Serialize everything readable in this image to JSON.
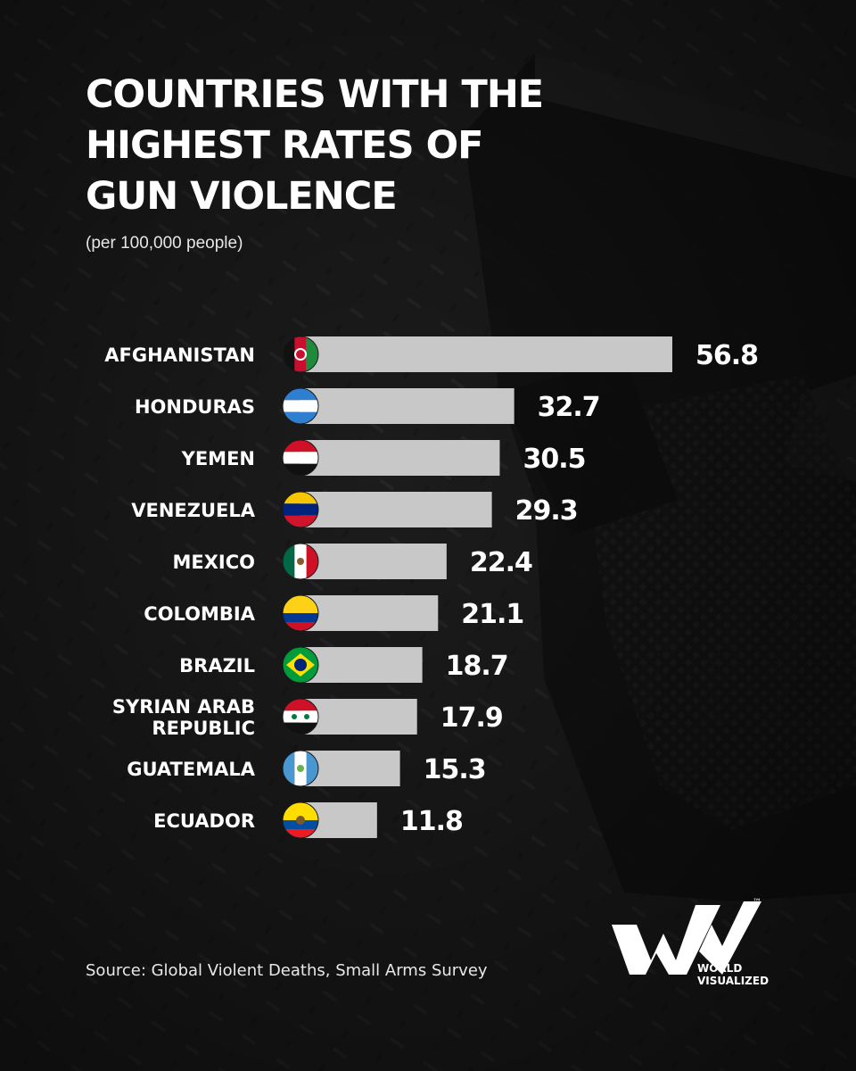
{
  "title": "COUNTRIES WITH THE\nHIGHEST RATES OF\nGUN VIOLENCE",
  "subtitle": "(per 100,000 people)",
  "source": "Source: Global Violent Deaths, Small Arms Survey",
  "brand": {
    "line1": "WORLD",
    "line2": "VISUALIZED",
    "mark": "™"
  },
  "colors": {
    "background": "#1e1e1e",
    "bar": "#c8c8c8",
    "text": "#ffffff"
  },
  "chart_data": {
    "type": "bar",
    "orientation": "horizontal",
    "title": "COUNTRIES WITH THE HIGHEST RATES OF GUN VIOLENCE",
    "subtitle": "(per 100,000 people)",
    "xlim": [
      0,
      56.8
    ],
    "grid": false,
    "categories": [
      [
        "AFGHANISTAN"
      ],
      [
        "HONDURAS"
      ],
      [
        "YEMEN"
      ],
      [
        "VENEZUELA"
      ],
      [
        "MEXICO"
      ],
      [
        "COLOMBIA"
      ],
      [
        "BRAZIL"
      ],
      [
        "SYRIAN ARAB",
        "REPUBLIC"
      ],
      [
        "GUATEMALA"
      ],
      [
        "ECUADOR"
      ]
    ],
    "values": [
      56.8,
      32.7,
      30.5,
      29.3,
      22.4,
      21.1,
      18.7,
      17.9,
      15.3,
      11.8
    ],
    "value_labels": [
      "56.8",
      "32.7",
      "30.5",
      "29.3",
      "22.4",
      "21.1",
      "18.7",
      "17.9",
      "15.3",
      "11.8"
    ],
    "flag_icons": [
      "afghanistan-flag-icon",
      "honduras-flag-icon",
      "yemen-flag-icon",
      "venezuela-flag-icon",
      "mexico-flag-icon",
      "colombia-flag-icon",
      "brazil-flag-icon",
      "syria-flag-icon",
      "guatemala-flag-icon",
      "ecuador-flag-icon"
    ]
  }
}
